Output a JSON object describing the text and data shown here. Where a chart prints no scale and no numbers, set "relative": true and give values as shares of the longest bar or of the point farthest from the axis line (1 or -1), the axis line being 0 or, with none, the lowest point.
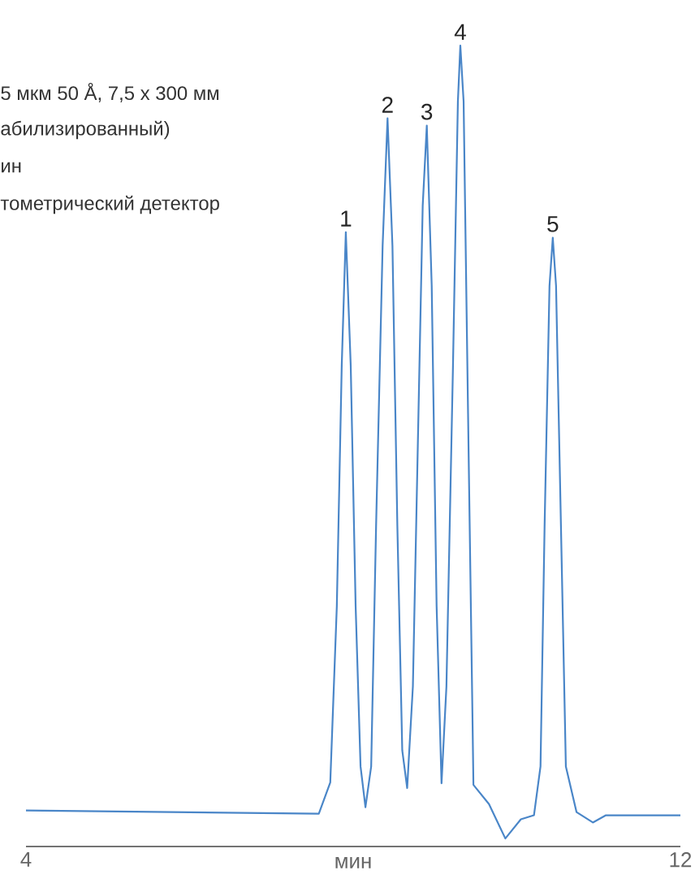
{
  "chart_data": {
    "type": "line",
    "relative": true,
    "xlabel": "мин",
    "xlim": [
      4,
      12
    ],
    "xticks": [
      4,
      12
    ],
    "grid": false,
    "marker": "none",
    "line_style": "solid",
    "annotations": [
      "5 мкм 50 Å, 7,5 x 300 мм",
      "абилизированный)",
      "ин",
      "тометрический детектор",
      {
        "text": "1",
        "x": 7.91,
        "y": 0.767
      },
      {
        "text": "2",
        "x": 8.42,
        "y": 0.909
      },
      {
        "text": "3",
        "x": 8.9,
        "y": 0.9
      },
      {
        "text": "4",
        "x": 9.31,
        "y": 1
      },
      {
        "text": "5",
        "x": 10.44,
        "y": 0.76
      }
    ],
    "series": [
      {
        "color": "#4a86c8",
        "x": [
          4.0,
          7.58,
          7.72,
          7.8,
          7.86,
          7.91,
          7.97,
          8.03,
          8.09,
          8.15,
          8.22,
          8.28,
          8.36,
          8.42,
          8.48,
          8.54,
          8.6,
          8.66,
          8.73,
          8.79,
          8.85,
          8.9,
          8.96,
          9.02,
          9.08,
          9.14,
          9.22,
          9.28,
          9.31,
          9.35,
          9.41,
          9.46,
          9.47,
          9.66,
          9.86,
          10.05,
          10.21,
          10.29,
          10.34,
          10.4,
          10.44,
          10.48,
          10.54,
          10.6,
          10.73,
          10.93,
          11.09,
          12.0
        ],
        "values": [
          0.045,
          0.041,
          0.08,
          0.3,
          0.6,
          0.767,
          0.6,
          0.3,
          0.1,
          0.049,
          0.1,
          0.4,
          0.75,
          0.909,
          0.75,
          0.4,
          0.12,
          0.073,
          0.2,
          0.5,
          0.8,
          0.9,
          0.7,
          0.3,
          0.079,
          0.2,
          0.6,
          0.93,
          1,
          0.93,
          0.5,
          0.15,
          0.077,
          0.053,
          0.01,
          0.034,
          0.039,
          0.1,
          0.4,
          0.7,
          0.76,
          0.7,
          0.4,
          0.1,
          0.043,
          0.03,
          0.039,
          0.039
        ]
      }
    ]
  }
}
